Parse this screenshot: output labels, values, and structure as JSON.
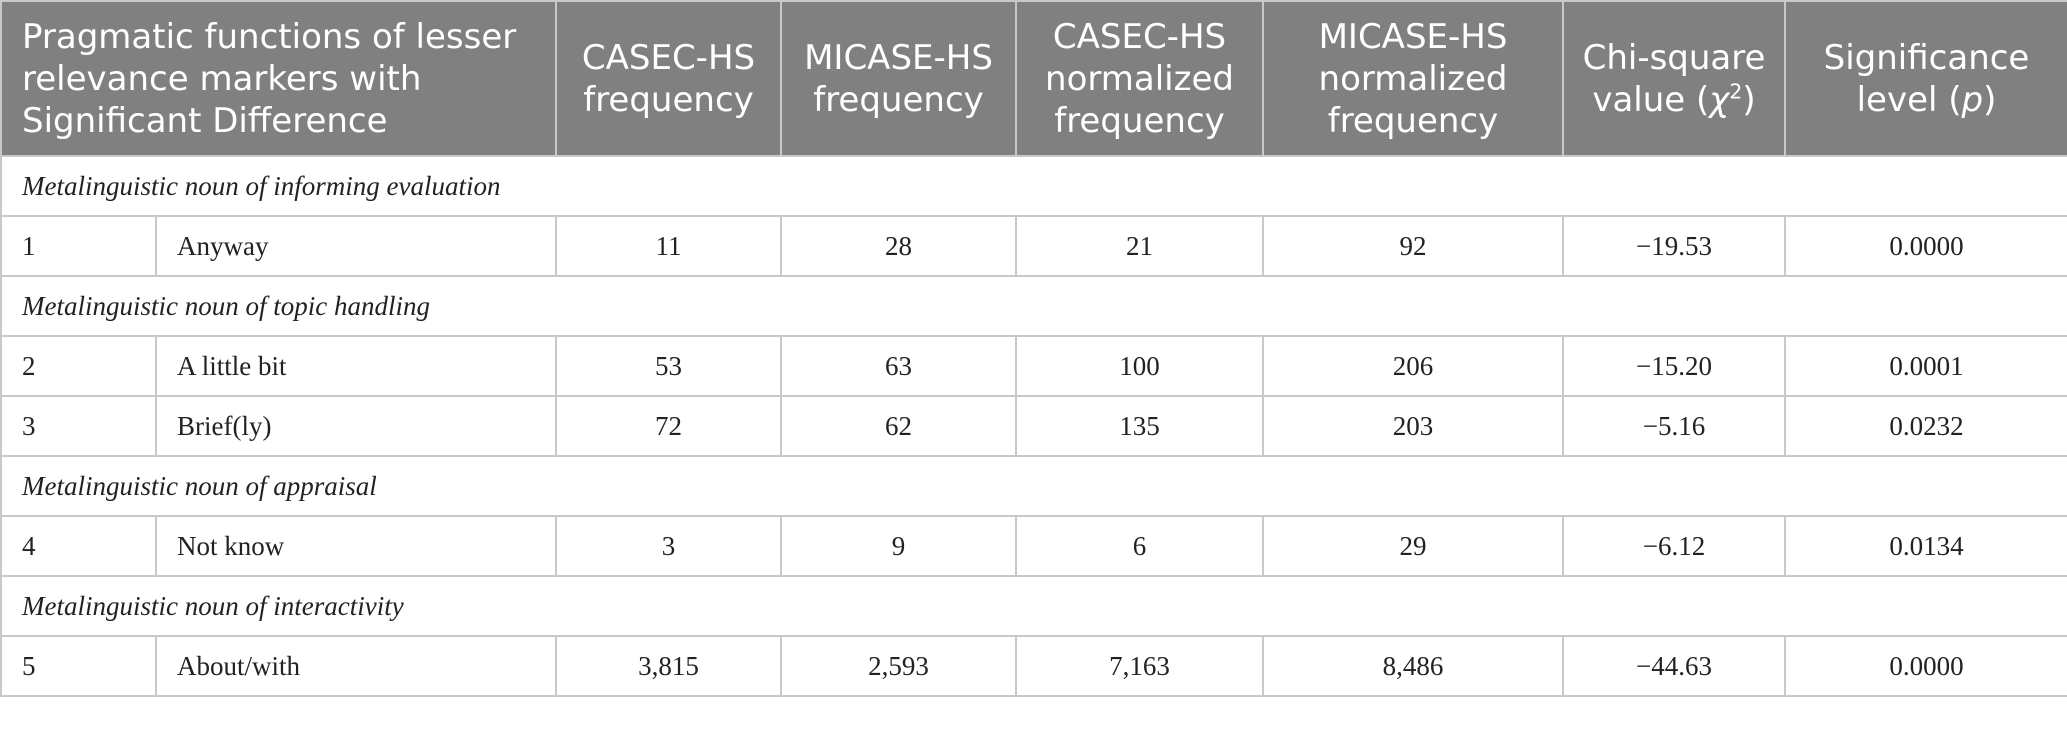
{
  "headers": {
    "pragmatic": "Pragmatic functions of lesser relevance markers with Significant Difference",
    "casec_freq": "CASEC-HS frequency",
    "micase_freq": "MICASE-HS frequency",
    "casec_norm": "CASEC-HS normalized frequency",
    "micase_norm": "MICASE-HS normalized frequency",
    "chi_label": "Chi-square value (",
    "chi_symbol": "χ",
    "chi_sup": "2",
    "chi_close": ")",
    "sig_label": "Significance level (",
    "sig_symbol": "p",
    "sig_close": ")"
  },
  "sections": [
    {
      "title": "Metalinguistic noun of informing evaluation",
      "rows": [
        {
          "num": "1",
          "marker": "Anyway",
          "casec": "11",
          "micase": "28",
          "casec_norm": "21",
          "micase_norm": "92",
          "chi": "−19.53",
          "p": "0.0000"
        }
      ]
    },
    {
      "title": "Metalinguistic noun of topic handling",
      "rows": [
        {
          "num": "2",
          "marker": "A little bit",
          "casec": "53",
          "micase": "63",
          "casec_norm": "100",
          "micase_norm": "206",
          "chi": "−15.20",
          "p": "0.0001"
        },
        {
          "num": "3",
          "marker": "Brief(ly)",
          "casec": "72",
          "micase": "62",
          "casec_norm": "135",
          "micase_norm": "203",
          "chi": "−5.16",
          "p": "0.0232"
        }
      ]
    },
    {
      "title": "Metalinguistic noun of appraisal",
      "rows": [
        {
          "num": "4",
          "marker": "Not know",
          "casec": "3",
          "micase": "9",
          "casec_norm": "6",
          "micase_norm": "29",
          "chi": "−6.12",
          "p": "0.0134"
        }
      ]
    },
    {
      "title": "Metalinguistic noun of interactivity",
      "rows": [
        {
          "num": "5",
          "marker": "About/with",
          "casec": "3,815",
          "micase": "2,593",
          "casec_norm": "7,163",
          "micase_norm": "8,486",
          "chi": "−44.63",
          "p": "0.0000"
        }
      ]
    }
  ]
}
